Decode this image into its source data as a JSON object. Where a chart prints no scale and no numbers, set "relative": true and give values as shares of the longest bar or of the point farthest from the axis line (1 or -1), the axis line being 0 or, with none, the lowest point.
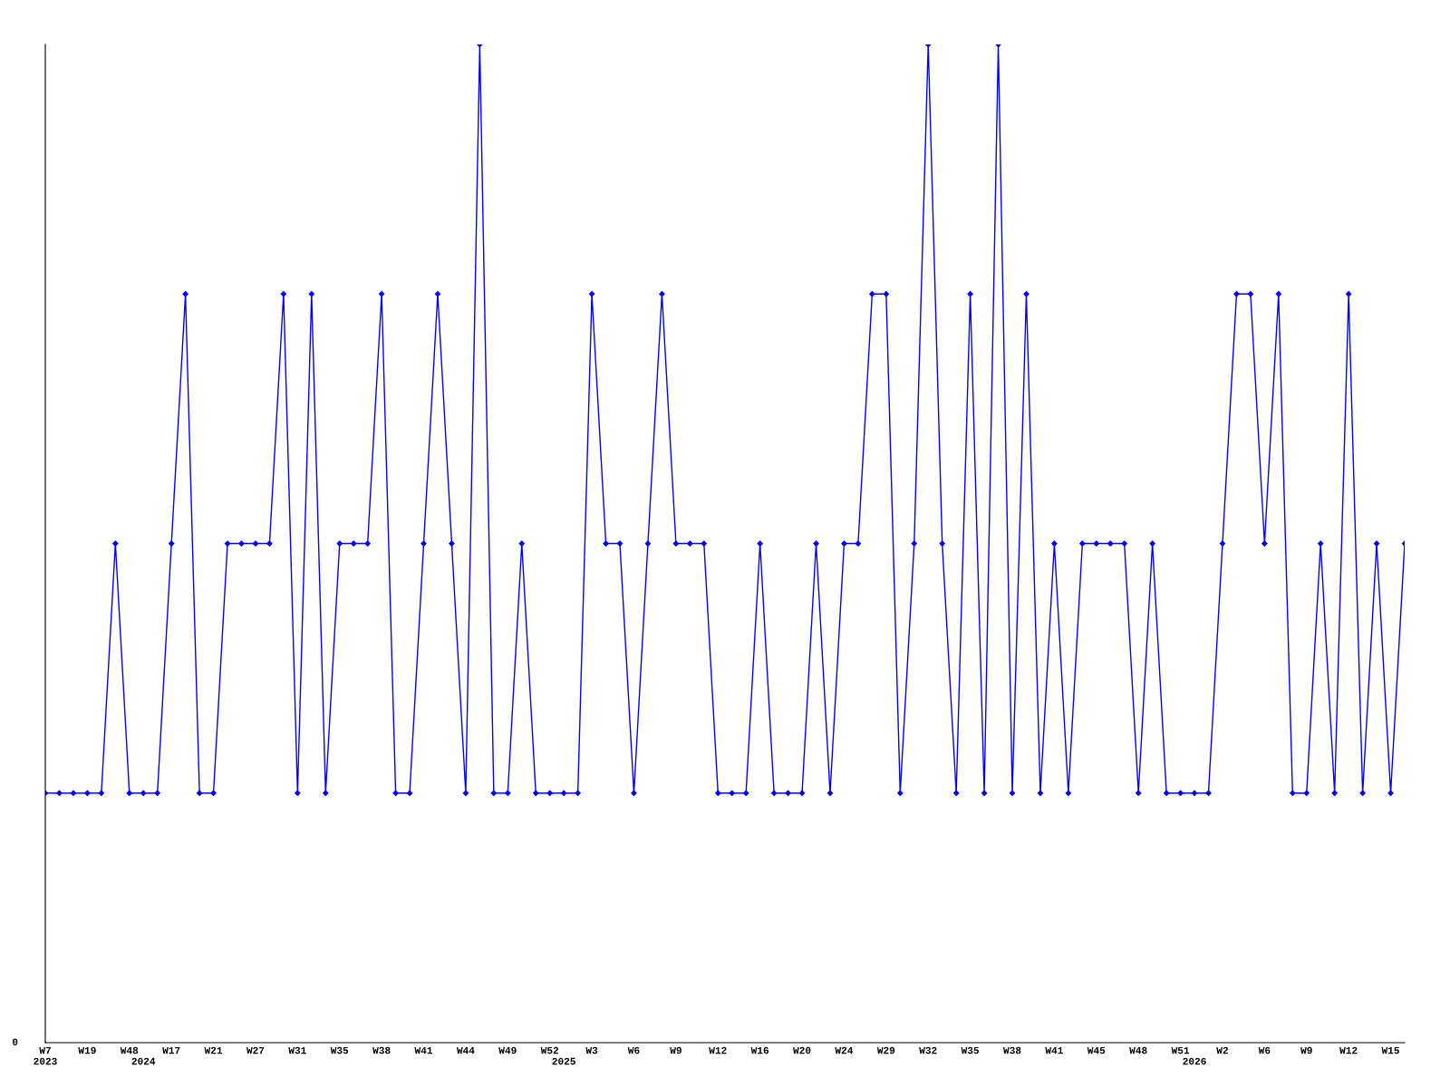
{
  "chart_data": {
    "type": "line",
    "relative": true,
    "marker": "diamond",
    "line_style": "solid",
    "grid": false,
    "legend": false,
    "categories": [
      "W7\n2023",
      null,
      null,
      "W19",
      null,
      null,
      "W48",
      "\n2024",
      null,
      "W17",
      null,
      null,
      "W21",
      null,
      null,
      "W27",
      null,
      null,
      "W31",
      null,
      null,
      "W35",
      null,
      null,
      "W38",
      null,
      null,
      "W41",
      null,
      null,
      "W44",
      null,
      null,
      "W49",
      null,
      null,
      "W52",
      "\n2025",
      null,
      "W3",
      null,
      null,
      "W6",
      null,
      null,
      "W9",
      null,
      null,
      "W12",
      null,
      null,
      "W16",
      null,
      null,
      "W20",
      null,
      null,
      "W24",
      null,
      null,
      "W29",
      null,
      null,
      "W32",
      null,
      null,
      "W35",
      null,
      null,
      "W38",
      null,
      null,
      "W41",
      null,
      null,
      "W45",
      null,
      null,
      "W48",
      null,
      null,
      "W51",
      "\n2026",
      null,
      "W2",
      null,
      null,
      "W6",
      null,
      null,
      "W9",
      null,
      null,
      "W12",
      null,
      null,
      "W15",
      null
    ],
    "series": [
      {
        "color": "#0000ff",
        "values": [
          0.25,
          0.25,
          0.25,
          0.25,
          0.25,
          0.5,
          0.25,
          0.25,
          0.25,
          0.5,
          0.75,
          0.25,
          0.25,
          0.5,
          0.5,
          0.5,
          0.5,
          0.75,
          0.25,
          0.75,
          0.25,
          0.5,
          0.5,
          0.5,
          0.75,
          0.25,
          0.25,
          0.5,
          0.75,
          0.5,
          0.25,
          1,
          0.25,
          0.25,
          0.5,
          0.25,
          0.25,
          0.25,
          0.25,
          0.75,
          0.5,
          0.5,
          0.25,
          0.5,
          0.75,
          0.5,
          0.5,
          0.5,
          0.25,
          0.25,
          0.25,
          0.5,
          0.25,
          0.25,
          0.25,
          0.5,
          0.25,
          0.5,
          0.5,
          0.75,
          0.75,
          0.25,
          0.5,
          1,
          0.5,
          0.25,
          0.75,
          0.25,
          1,
          0.25,
          0.75,
          0.25,
          0.5,
          0.25,
          0.5,
          0.5,
          0.5,
          0.5,
          0.25,
          0.5,
          0.25,
          0.25,
          0.25,
          0.25,
          0.5,
          0.75,
          0.75,
          0.5,
          0.75,
          0.25,
          0.25,
          0.5,
          0.25,
          0.75,
          0.25,
          0.5,
          0.25,
          0.5
        ]
      }
    ],
    "annotations": [
      "0"
    ]
  }
}
